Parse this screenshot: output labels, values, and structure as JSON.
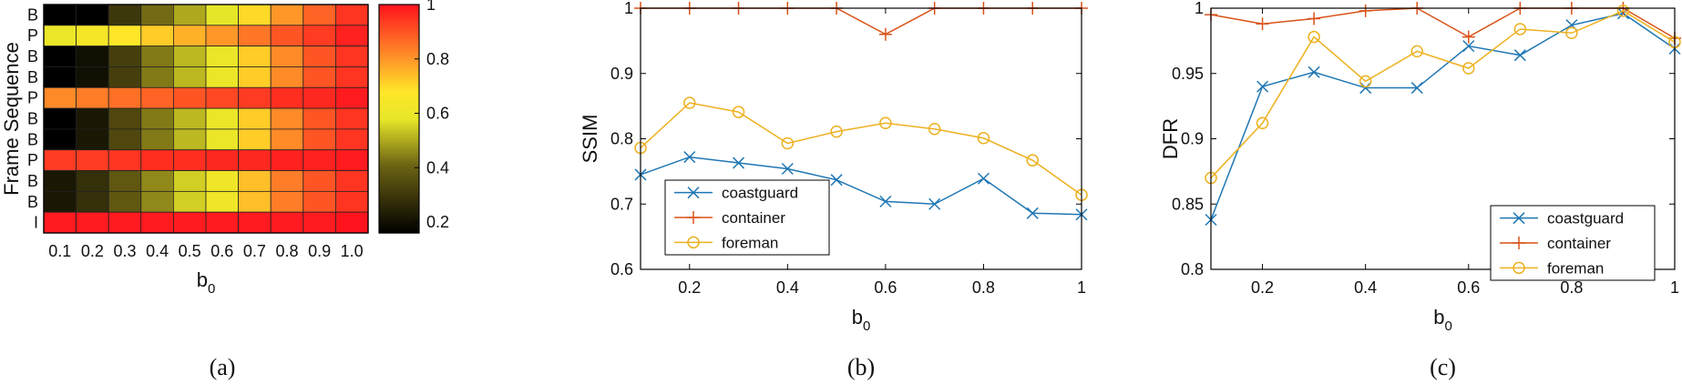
{
  "chart_data": [
    {
      "type": "heatmap",
      "caption": "(a)",
      "ylabel": "Frame Sequence",
      "xlabel_main": "b",
      "xlabel_sub": "0",
      "x_categories": [
        "0.1",
        "0.2",
        "0.3",
        "0.4",
        "0.5",
        "0.6",
        "0.7",
        "0.8",
        "0.9",
        "1.0"
      ],
      "y_categories": [
        "B",
        "P",
        "B",
        "B",
        "P",
        "B",
        "B",
        "P",
        "B",
        "B",
        "I"
      ],
      "values": [
        [
          0.16,
          0.16,
          0.3,
          0.42,
          0.5,
          0.58,
          0.7,
          0.8,
          0.88,
          0.95
        ],
        [
          0.6,
          0.64,
          0.68,
          0.72,
          0.76,
          0.8,
          0.85,
          0.9,
          0.94,
          0.98
        ],
        [
          0.16,
          0.2,
          0.32,
          0.44,
          0.52,
          0.6,
          0.72,
          0.82,
          0.9,
          0.95
        ],
        [
          0.16,
          0.2,
          0.32,
          0.44,
          0.52,
          0.6,
          0.72,
          0.82,
          0.9,
          0.95
        ],
        [
          0.82,
          0.84,
          0.86,
          0.88,
          0.9,
          0.92,
          0.94,
          0.96,
          0.97,
          0.99
        ],
        [
          0.16,
          0.22,
          0.34,
          0.44,
          0.52,
          0.6,
          0.72,
          0.82,
          0.9,
          0.95
        ],
        [
          0.16,
          0.22,
          0.34,
          0.44,
          0.52,
          0.6,
          0.72,
          0.82,
          0.9,
          0.95
        ],
        [
          0.94,
          0.94,
          0.95,
          0.96,
          0.96,
          0.97,
          0.97,
          0.98,
          0.98,
          0.99
        ],
        [
          0.22,
          0.28,
          0.38,
          0.46,
          0.55,
          0.62,
          0.74,
          0.84,
          0.9,
          0.95
        ],
        [
          0.22,
          0.28,
          0.38,
          0.46,
          0.55,
          0.62,
          0.74,
          0.84,
          0.9,
          0.95
        ],
        [
          0.99,
          0.99,
          0.99,
          0.99,
          0.99,
          0.99,
          0.99,
          0.99,
          0.99,
          1.0
        ]
      ],
      "colorbar": {
        "range": [
          0.16,
          1
        ],
        "ticks": [
          0.2,
          0.4,
          0.6,
          0.8,
          1
        ],
        "tick_labels": [
          "0.2",
          "0.4",
          "0.6",
          "0.8",
          "1"
        ]
      }
    },
    {
      "type": "line",
      "caption": "(b)",
      "ylabel": "SSIM",
      "xlabel_main": "b",
      "xlabel_sub": "0",
      "xlim": [
        0.1,
        1.0
      ],
      "ylim": [
        0.6,
        1.0
      ],
      "x_ticks": [
        0.2,
        0.4,
        0.6,
        0.8,
        1.0
      ],
      "x_tick_labels": [
        "0.2",
        "0.4",
        "0.6",
        "0.8",
        "1"
      ],
      "y_ticks": [
        0.6,
        0.7,
        0.8,
        0.9,
        1.0
      ],
      "y_tick_labels": [
        "0.6",
        "0.7",
        "0.8",
        "0.9",
        "1"
      ],
      "legend_position": "bottom-left",
      "x": [
        0.1,
        0.2,
        0.3,
        0.4,
        0.5,
        0.6,
        0.7,
        0.8,
        0.9,
        1.0
      ],
      "series": [
        {
          "name": "coastguard",
          "marker": "x",
          "color": "#1f77b4",
          "values": [
            0.745,
            0.772,
            0.763,
            0.754,
            0.737,
            0.704,
            0.7,
            0.739,
            0.686,
            0.684
          ]
        },
        {
          "name": "container",
          "marker": "+",
          "color": "#d95319",
          "values": [
            1.0,
            1.0,
            1.0,
            1.0,
            1.0,
            0.96,
            1.0,
            1.0,
            1.0,
            1.0
          ]
        },
        {
          "name": "foreman",
          "marker": "o",
          "color": "#edb120",
          "values": [
            0.786,
            0.855,
            0.841,
            0.793,
            0.811,
            0.824,
            0.815,
            0.801,
            0.767,
            0.714
          ]
        }
      ]
    },
    {
      "type": "line",
      "caption": "(c)",
      "ylabel": "DFR",
      "xlabel_main": "b",
      "xlabel_sub": "0",
      "xlim": [
        0.1,
        1.0
      ],
      "ylim": [
        0.8,
        1.0
      ],
      "x_ticks": [
        0.2,
        0.4,
        0.6,
        0.8,
        1.0
      ],
      "x_tick_labels": [
        "0.2",
        "0.4",
        "0.6",
        "0.8",
        "1"
      ],
      "y_ticks": [
        0.8,
        0.85,
        0.9,
        0.95,
        1.0
      ],
      "y_tick_labels": [
        "0.8",
        "0.85",
        "0.9",
        "0.95",
        "1"
      ],
      "legend_position": "bottom-right",
      "x": [
        0.1,
        0.2,
        0.3,
        0.4,
        0.5,
        0.6,
        0.7,
        0.8,
        0.9,
        1.0
      ],
      "series": [
        {
          "name": "coastguard",
          "marker": "x",
          "color": "#1f77b4",
          "values": [
            0.838,
            0.94,
            0.951,
            0.939,
            0.939,
            0.971,
            0.964,
            0.987,
            0.996,
            0.969
          ]
        },
        {
          "name": "container",
          "marker": "+",
          "color": "#d95319",
          "values": [
            0.995,
            0.988,
            0.992,
            0.998,
            1.0,
            0.978,
            1.0,
            1.0,
            1.0,
            0.977
          ]
        },
        {
          "name": "foreman",
          "marker": "o",
          "color": "#edb120",
          "values": [
            0.87,
            0.912,
            0.978,
            0.944,
            0.967,
            0.954,
            0.984,
            0.981,
            0.998,
            0.974
          ]
        }
      ]
    }
  ]
}
